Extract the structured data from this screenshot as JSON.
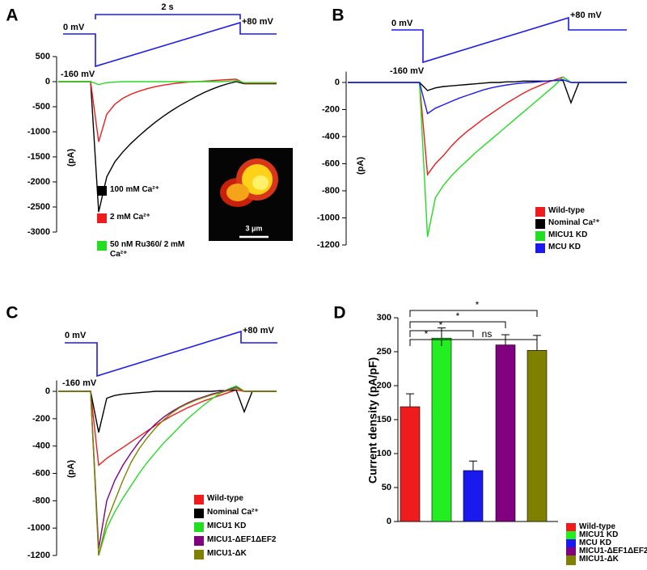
{
  "chart_data": [
    {
      "type": "line",
      "panel": "A",
      "y_label": "(pA)",
      "annotations": [
        "0 mV",
        "-160 mV",
        "+80 mV",
        "2 s"
      ],
      "inset_scale": "3 μm",
      "ylim": [
        -3000,
        500
      ],
      "yticks": [
        500,
        0,
        -500,
        -1000,
        -1500,
        -2000,
        -2500,
        -3000
      ],
      "series": [
        {
          "name": "100 mM Ca²⁺",
          "color": "#000000",
          "values": [
            0,
            0,
            0,
            0,
            0,
            -2600,
            -1900,
            -1600,
            -1400,
            -1230,
            -1080,
            -940,
            -810,
            -690,
            -580,
            -480,
            -390,
            -300,
            -220,
            -150,
            -90,
            -40,
            0,
            -40,
            -40,
            -40,
            -40,
            -40
          ]
        },
        {
          "name": "2 mM Ca²⁺",
          "color": "#ee1c1c",
          "values": [
            0,
            0,
            0,
            0,
            0,
            -1200,
            -650,
            -450,
            -330,
            -250,
            -190,
            -140,
            -100,
            -70,
            -45,
            -25,
            -10,
            0,
            10,
            20,
            30,
            40,
            50,
            -30,
            -30,
            -30,
            -30,
            -30
          ]
        },
        {
          "name": "50 nM Ru360/ 2 mM Ca²⁺",
          "color": "#22dd22",
          "values": [
            0,
            0,
            0,
            0,
            0,
            -60,
            -20,
            -10,
            0,
            0,
            0,
            0,
            0,
            0,
            0,
            0,
            0,
            0,
            0,
            0,
            0,
            10,
            20,
            -20,
            -20,
            -20,
            -20,
            -20
          ]
        }
      ]
    },
    {
      "type": "line",
      "panel": "B",
      "y_label": "(pA)",
      "annotations": [
        "0 mV",
        "-160 mV",
        "+80 mV"
      ],
      "ylim": [
        -1200,
        80
      ],
      "yticks": [
        0,
        -200,
        -400,
        -600,
        -800,
        -1000,
        -1200
      ],
      "series": [
        {
          "name": "Wild-type",
          "color": "#ee1c1c",
          "values": [
            0,
            0,
            0,
            0,
            0,
            0,
            0,
            0,
            0,
            0,
            -680,
            -600,
            -540,
            -470,
            -410,
            -360,
            -315,
            -270,
            -230,
            -190,
            -150,
            -115,
            -80,
            -50,
            -25,
            0,
            20,
            40,
            0,
            0,
            0,
            0,
            0,
            0,
            0,
            0
          ]
        },
        {
          "name": "Nominal Ca²⁺",
          "color": "#000000",
          "values": [
            0,
            0,
            0,
            0,
            0,
            0,
            0,
            0,
            0,
            0,
            -60,
            -40,
            -30,
            -25,
            -20,
            -15,
            -10,
            -5,
            0,
            0,
            5,
            5,
            10,
            10,
            10,
            10,
            15,
            15,
            -150,
            0,
            0,
            0,
            0,
            0,
            0,
            0
          ]
        },
        {
          "name": "MICU1 KD",
          "color": "#22dd22",
          "values": [
            0,
            0,
            0,
            0,
            0,
            0,
            0,
            0,
            0,
            0,
            -1140,
            -850,
            -760,
            -690,
            -630,
            -575,
            -520,
            -470,
            -420,
            -370,
            -320,
            -270,
            -220,
            -170,
            -120,
            -70,
            -20,
            40,
            0,
            0,
            0,
            0,
            0,
            0,
            0,
            0
          ]
        },
        {
          "name": "MCU KD",
          "color": "#1a1aee",
          "values": [
            0,
            0,
            0,
            0,
            0,
            0,
            0,
            0,
            0,
            0,
            -230,
            -190,
            -165,
            -140,
            -115,
            -95,
            -75,
            -55,
            -40,
            -28,
            -18,
            -10,
            -3,
            0,
            5,
            10,
            15,
            20,
            0,
            0,
            0,
            0,
            0,
            0,
            0,
            0
          ]
        }
      ]
    },
    {
      "type": "line",
      "panel": "C",
      "y_label": "(pA)",
      "annotations": [
        "0 mV",
        "-160 mV",
        "+80 mV"
      ],
      "ylim": [
        -1200,
        80
      ],
      "yticks": [
        0,
        -200,
        -400,
        -600,
        -800,
        -1000,
        -1200
      ],
      "series": [
        {
          "name": "Wild-type",
          "color": "#ee1c1c",
          "values": [
            0,
            0,
            0,
            0,
            0,
            -540,
            -490,
            -450,
            -410,
            -370,
            -330,
            -290,
            -250,
            -215,
            -180,
            -150,
            -120,
            -95,
            -70,
            -50,
            -30,
            -10,
            10,
            0,
            0,
            0,
            0,
            0
          ]
        },
        {
          "name": "Nominal Ca²⁺",
          "color": "#000000",
          "values": [
            0,
            0,
            0,
            0,
            0,
            -300,
            -50,
            -30,
            -20,
            -15,
            -10,
            -5,
            0,
            0,
            0,
            0,
            0,
            0,
            0,
            0,
            5,
            5,
            10,
            -150,
            0,
            0,
            0,
            0
          ]
        },
        {
          "name": "MICU1 KD",
          "color": "#22dd22",
          "values": [
            0,
            0,
            0,
            0,
            0,
            -1200,
            -1000,
            -880,
            -780,
            -690,
            -600,
            -520,
            -450,
            -380,
            -320,
            -260,
            -200,
            -150,
            -100,
            -55,
            -15,
            15,
            40,
            0,
            0,
            0,
            0,
            0
          ]
        },
        {
          "name": "MICU1-ΔEF1ΔEF2",
          "color": "#800080",
          "values": [
            0,
            0,
            0,
            0,
            0,
            -1150,
            -800,
            -650,
            -540,
            -450,
            -370,
            -300,
            -240,
            -190,
            -150,
            -115,
            -85,
            -60,
            -40,
            -20,
            -5,
            10,
            30,
            0,
            0,
            0,
            0,
            0
          ]
        },
        {
          "name": "MICU1-ΔK",
          "color": "#808000",
          "values": [
            0,
            0,
            0,
            0,
            0,
            -1200,
            -950,
            -800,
            -650,
            -520,
            -420,
            -340,
            -270,
            -210,
            -160,
            -120,
            -90,
            -65,
            -45,
            -25,
            -10,
            5,
            25,
            0,
            0,
            0,
            0,
            0
          ]
        }
      ]
    },
    {
      "type": "bar",
      "panel": "D",
      "y_label": "Current density (pA/pF)",
      "categories": [
        "Wild-type",
        "MICU1 KD",
        "MCU KD",
        "MICU1-ΔEF1ΔEF2",
        "MICU1-ΔK"
      ],
      "colors": [
        "#ee1c1c",
        "#22ee22",
        "#1a1aee",
        "#800080",
        "#808000"
      ],
      "values": [
        169,
        270,
        75,
        260,
        252
      ],
      "errors": [
        19,
        15,
        14,
        15,
        22
      ],
      "annotations": [
        "*",
        "*",
        "*",
        "*",
        "ns"
      ],
      "ylim": [
        0,
        300
      ],
      "yticks": [
        0,
        50,
        100,
        150,
        200,
        250,
        300
      ]
    }
  ]
}
